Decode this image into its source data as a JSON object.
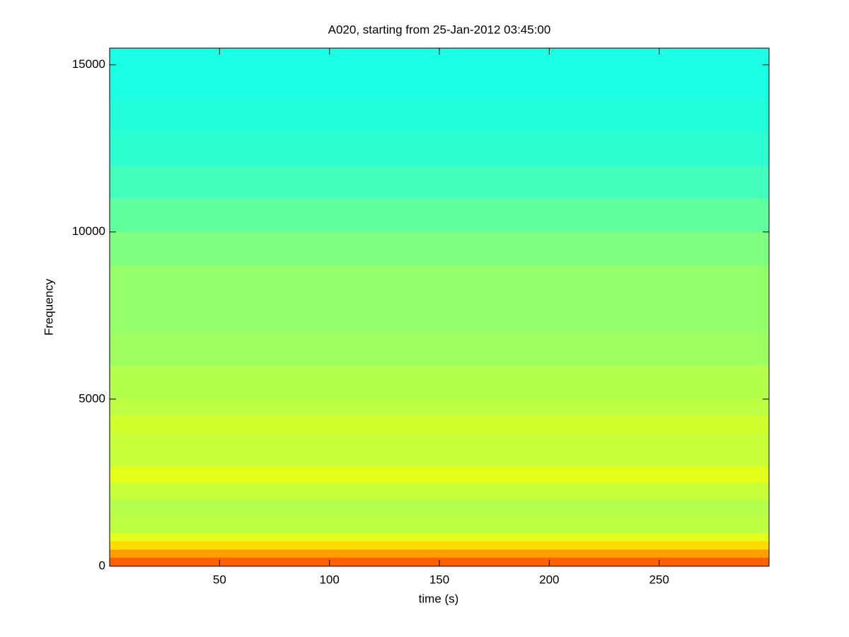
{
  "chart_data": {
    "type": "spectrogram",
    "title": "A020, starting from 25-Jan-2012 03:45:00",
    "x_label": "time (s)",
    "y_label": "Frequency",
    "xlim": [
      0,
      300
    ],
    "xticks": [
      50,
      100,
      150,
      200,
      250
    ],
    "ylim": [
      0,
      15500
    ],
    "yticks": [
      0,
      5000,
      10000,
      15000
    ],
    "colormap": "jet",
    "clim": [
      0,
      1
    ],
    "freq_edges": [
      0,
      250,
      500,
      750,
      1000,
      1500,
      2000,
      2500,
      3000,
      3500,
      4000,
      4500,
      5000,
      6000,
      7000,
      8000,
      9000,
      10000,
      11000,
      12000,
      13000,
      14000,
      15500
    ],
    "levels": [
      0.78,
      0.72,
      0.66,
      0.6,
      0.56,
      0.55,
      0.57,
      0.6,
      0.57,
      0.57,
      0.58,
      0.56,
      0.55,
      0.53,
      0.52,
      0.52,
      0.5,
      0.47,
      0.44,
      0.42,
      0.41,
      0.4
    ]
  }
}
